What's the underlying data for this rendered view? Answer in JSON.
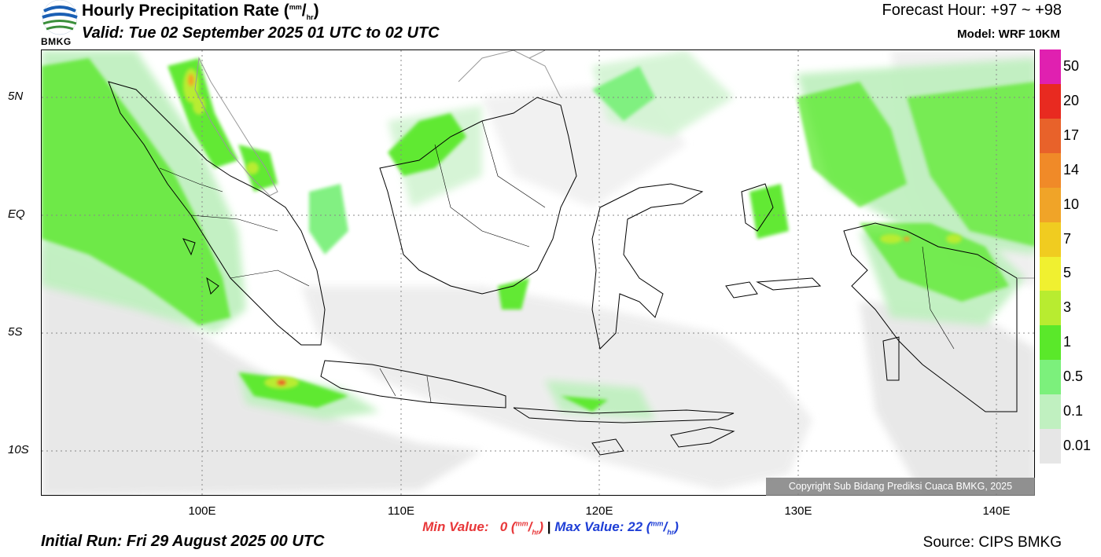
{
  "header": {
    "title_main": "Hourly Precipitation Rate (",
    "title_unit_num": "mm",
    "title_unit_den": "hr",
    "title_close": ")",
    "valid": "Valid: Tue 02 September 2025 01 UTC to 02 UTC",
    "forecast_hour": "Forecast Hour: +97 ~ +98",
    "model": "Model: WRF 10KM",
    "logo_text": "BMKG"
  },
  "map": {
    "lat_labels": [
      "5N",
      "EQ",
      "5S",
      "10S"
    ],
    "lon_labels": [
      "100E",
      "110E",
      "120E",
      "130E",
      "140E"
    ],
    "copyright": "Copyright Sub Bidang Prediksi Cuaca BMKG, 2025"
  },
  "legend": {
    "labels": [
      "50",
      "20",
      "17",
      "14",
      "10",
      "7",
      "5",
      "3",
      "1",
      "0.5",
      "0.1",
      "0.01"
    ],
    "colors": [
      "#e020b0",
      "#e82a20",
      "#e8622a",
      "#f08a28",
      "#f0a428",
      "#f0cc20",
      "#f0f030",
      "#b8ec30",
      "#5ae82a",
      "#7cf07c",
      "#c0f0c0",
      "#e6e6e6"
    ]
  },
  "footer": {
    "min_label": "Min Value:",
    "min_value": "0",
    "max_label": "Max Value:",
    "max_value": "22",
    "unit_num": "mm",
    "unit_den": "hr",
    "separator": "|",
    "initial_run": "Initial Run: Fri 29 August 2025 00 UTC",
    "source": "Source: CIPS BMKG"
  }
}
